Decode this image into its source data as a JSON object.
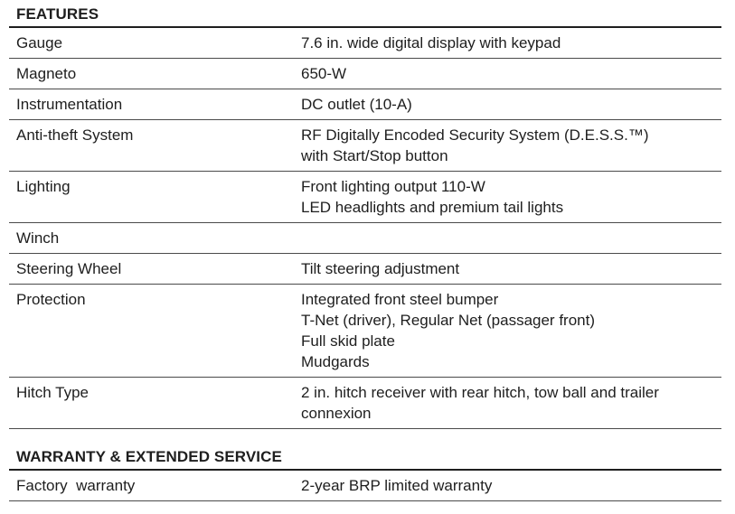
{
  "features": {
    "title": "FEATURES",
    "rows": [
      {
        "label": "Gauge",
        "values": [
          "7.6 in. wide digital display with keypad"
        ]
      },
      {
        "label": "Magneto",
        "values": [
          "650-W"
        ]
      },
      {
        "label": "Instrumentation",
        "values": [
          "DC outlet (10-A)"
        ]
      },
      {
        "label": "Anti-theft System",
        "values": [
          "RF Digitally Encoded Security System (D.E.S.S.™)",
          "with Start/Stop button"
        ]
      },
      {
        "label": "Lighting",
        "values": [
          "Front lighting output 110-W",
          "LED headlights and premium tail lights"
        ]
      },
      {
        "label": "Winch",
        "values": []
      },
      {
        "label": "Steering Wheel",
        "values": [
          "Tilt steering adjustment"
        ]
      },
      {
        "label": "Protection",
        "values": [
          "Integrated front steel bumper",
          "T-Net (driver), Regular Net (passager front)",
          "Full skid plate",
          "Mudgards"
        ]
      },
      {
        "label": "Hitch Type",
        "values": [
          "2 in. hitch receiver with rear hitch, tow ball and trailer",
          "connexion"
        ]
      }
    ]
  },
  "warranty": {
    "title": "WARRANTY & EXTENDED SERVICE",
    "rows": [
      {
        "label": "Factory  warranty",
        "values": [
          "2-year BRP limited warranty"
        ]
      }
    ]
  }
}
